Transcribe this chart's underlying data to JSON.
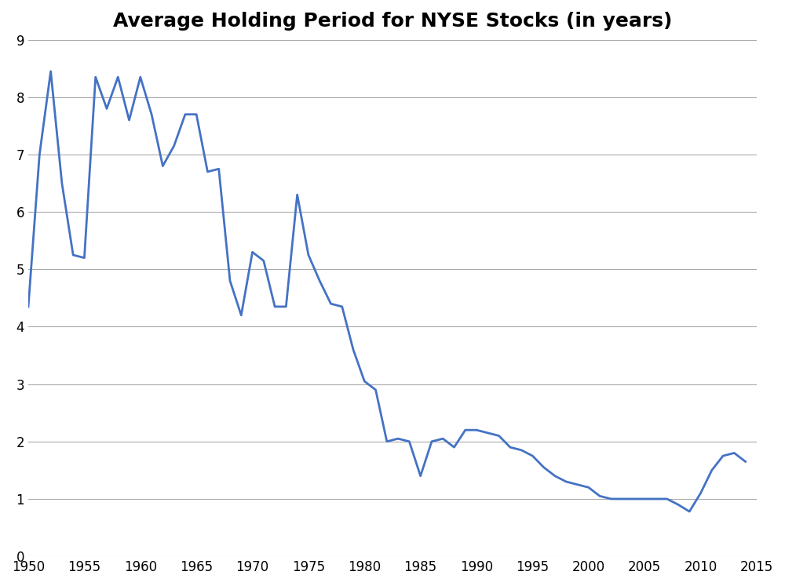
{
  "title": "Average Holding Period for NYSE Stocks (in years)",
  "title_fontsize": 18,
  "title_fontweight": "bold",
  "xlim": [
    1950,
    2015
  ],
  "ylim": [
    0,
    9
  ],
  "xticks": [
    1950,
    1955,
    1960,
    1965,
    1970,
    1975,
    1980,
    1985,
    1990,
    1995,
    2000,
    2005,
    2010,
    2015
  ],
  "yticks": [
    0,
    1,
    2,
    3,
    4,
    5,
    6,
    7,
    8,
    9
  ],
  "line_color": "#4472C4",
  "line_width": 2.0,
  "background_color": "#FFFFFF",
  "grid_color": "#AAAAAA",
  "grid_linewidth": 0.8,
  "years": [
    1950,
    1951,
    1952,
    1953,
    1954,
    1955,
    1956,
    1957,
    1958,
    1959,
    1960,
    1961,
    1962,
    1963,
    1964,
    1965,
    1966,
    1967,
    1968,
    1969,
    1970,
    1971,
    1972,
    1973,
    1974,
    1975,
    1976,
    1977,
    1978,
    1979,
    1980,
    1981,
    1982,
    1983,
    1984,
    1985,
    1986,
    1987,
    1988,
    1989,
    1990,
    1991,
    1992,
    1993,
    1994,
    1995,
    1996,
    1997,
    1998,
    1999,
    2000,
    2001,
    2002,
    2003,
    2004,
    2005,
    2006,
    2007,
    2008,
    2009,
    2010,
    2011,
    2012,
    2013,
    2014
  ],
  "values": [
    4.35,
    7.0,
    8.45,
    6.5,
    5.25,
    5.2,
    8.35,
    7.8,
    8.35,
    7.6,
    8.35,
    7.7,
    6.8,
    7.15,
    7.7,
    7.7,
    6.7,
    6.75,
    4.8,
    4.2,
    5.3,
    5.15,
    4.35,
    4.35,
    6.3,
    5.25,
    4.8,
    4.4,
    4.35,
    3.6,
    3.05,
    2.9,
    2.0,
    2.05,
    2.0,
    1.4,
    2.0,
    2.05,
    1.9,
    2.2,
    2.2,
    2.15,
    2.1,
    1.9,
    1.85,
    1.75,
    1.55,
    1.4,
    1.3,
    1.25,
    1.2,
    1.05,
    1.0,
    1.0,
    1.0,
    1.0,
    1.0,
    1.0,
    0.9,
    0.78,
    1.1,
    1.5,
    1.75,
    1.8,
    1.65
  ]
}
